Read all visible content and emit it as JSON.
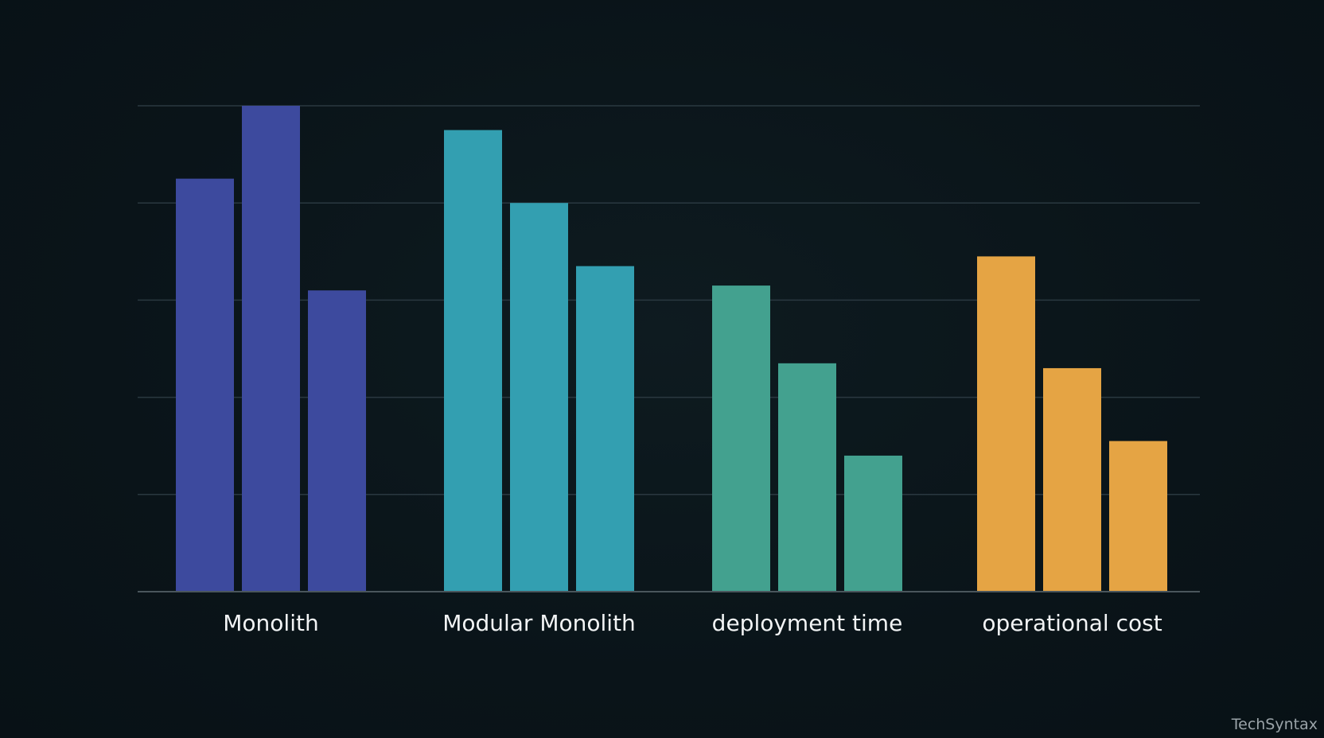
{
  "chart_data": {
    "type": "bar",
    "title": "",
    "xlabel": "",
    "ylabel": "",
    "ylim": [
      0,
      100
    ],
    "grid": true,
    "legend": "none",
    "categories": [
      "Monolith",
      "Modular Monolith",
      "deployment time",
      "operational cost"
    ],
    "series": [
      {
        "values": [
          85,
          95,
          63,
          69
        ]
      },
      {
        "values": [
          100,
          80,
          47,
          46
        ]
      },
      {
        "values": [
          62,
          67,
          28,
          31
        ]
      }
    ],
    "group_colors": [
      "#3d4a9e",
      "#339fb1",
      "#43a18f",
      "#e5a444"
    ]
  },
  "watermark": "TechSyntax"
}
